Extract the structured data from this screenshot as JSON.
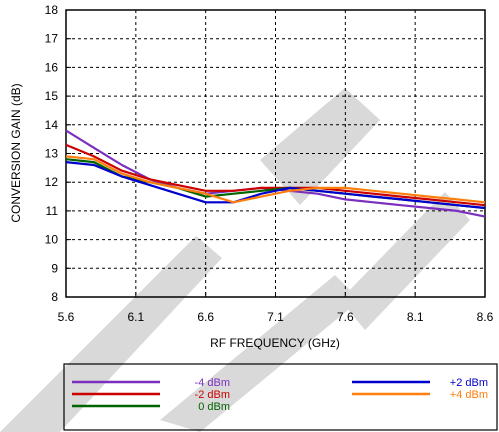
{
  "chart_data": {
    "type": "line",
    "xlabel": "RF FREQUENCY (GHz)",
    "ylabel": "CONVERSION GAIN (dB)",
    "xlim": [
      5.6,
      8.6
    ],
    "ylim": [
      8,
      18
    ],
    "xticks": [
      "5.6",
      "6.1",
      "6.6",
      "7.1",
      "7.6",
      "8.1",
      "8.6"
    ],
    "yticks": [
      "8",
      "9",
      "10",
      "11",
      "12",
      "13",
      "14",
      "15",
      "16",
      "17",
      "18"
    ],
    "grid": true,
    "legend_position": "bottom",
    "series": [
      {
        "name": "-4 dBm",
        "color": "#7b2fbe",
        "x": [
          5.6,
          5.8,
          6.0,
          6.2,
          6.4,
          6.6,
          6.8,
          7.0,
          7.2,
          7.4,
          7.6,
          7.8,
          8.0,
          8.2,
          8.4,
          8.6
        ],
        "y": [
          13.8,
          13.2,
          12.6,
          12.1,
          11.8,
          11.6,
          11.7,
          11.8,
          11.7,
          11.6,
          11.4,
          11.3,
          11.2,
          11.1,
          11.0,
          10.8
        ]
      },
      {
        "name": "-2 dBm",
        "color": "#cc0000",
        "x": [
          5.6,
          5.8,
          6.0,
          6.2,
          6.4,
          6.6,
          6.8,
          7.0,
          7.2,
          7.4,
          7.6,
          7.8,
          8.0,
          8.2,
          8.4,
          8.6
        ],
        "y": [
          13.3,
          12.9,
          12.4,
          12.1,
          11.9,
          11.7,
          11.7,
          11.8,
          11.8,
          11.8,
          11.7,
          11.6,
          11.5,
          11.4,
          11.3,
          11.2
        ]
      },
      {
        "name": "0 dBm",
        "color": "#006400",
        "x": [
          5.6,
          5.8,
          6.0,
          6.2,
          6.4,
          6.6,
          6.8,
          7.0,
          7.2,
          7.4,
          7.6,
          7.8,
          8.0,
          8.2,
          8.4,
          8.6
        ],
        "y": [
          12.8,
          12.7,
          12.2,
          12.0,
          11.8,
          11.5,
          11.6,
          11.7,
          11.8,
          11.7,
          11.6,
          11.5,
          11.4,
          11.3,
          11.2,
          11.1
        ]
      },
      {
        "name": "+2 dBm",
        "color": "#0000cc",
        "x": [
          5.6,
          5.8,
          6.0,
          6.2,
          6.4,
          6.6,
          6.8,
          7.0,
          7.2,
          7.4,
          7.6,
          7.8,
          8.0,
          8.2,
          8.4,
          8.6
        ],
        "y": [
          12.7,
          12.6,
          12.2,
          11.9,
          11.6,
          11.3,
          11.3,
          11.6,
          11.8,
          11.7,
          11.6,
          11.5,
          11.4,
          11.3,
          11.2,
          11.1
        ]
      },
      {
        "name": "+4 dBm",
        "color": "#ff7f0e",
        "x": [
          5.6,
          5.8,
          6.0,
          6.2,
          6.4,
          6.6,
          6.8,
          7.0,
          7.2,
          7.4,
          7.6,
          7.8,
          8.0,
          8.2,
          8.4,
          8.6
        ],
        "y": [
          12.9,
          12.8,
          12.3,
          12.0,
          11.8,
          11.6,
          11.3,
          11.5,
          11.7,
          11.8,
          11.8,
          11.7,
          11.6,
          11.5,
          11.4,
          11.3
        ]
      }
    ]
  }
}
